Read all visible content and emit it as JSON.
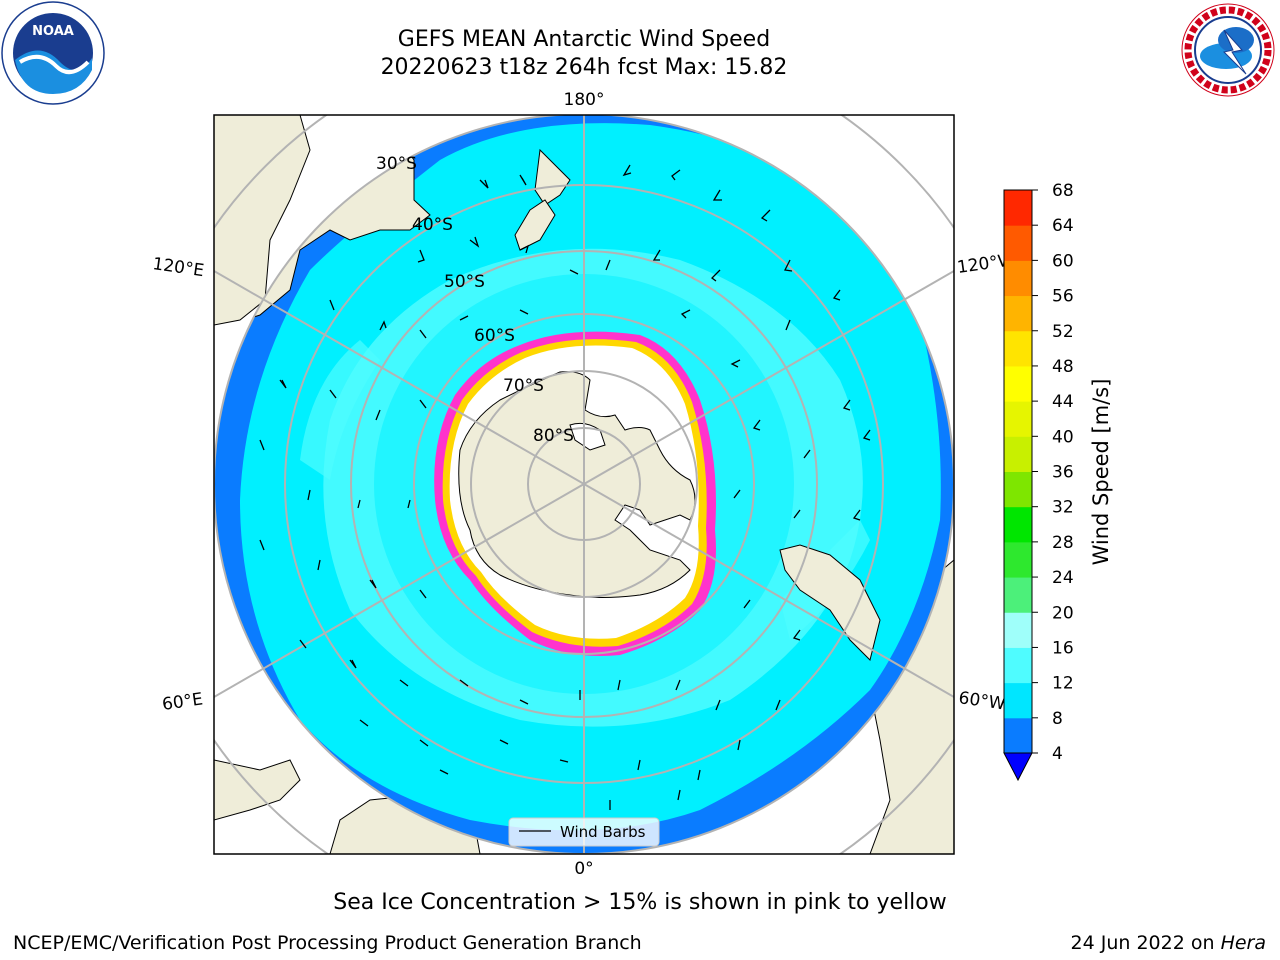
{
  "header": {
    "title": "GEFS MEAN Antarctic Wind Speed",
    "subtitle": "20220623 t18z 264h fcst   Max: 15.82"
  },
  "logos": {
    "left": {
      "text": "NOAA",
      "ring_text": "NATIONAL OCEANIC AND ATMOSPHERIC ADMINISTRATION · U.S. DEPARTMENT OF COMMERCE"
    },
    "right": {
      "ring_text": "NATIONAL WEATHER SERVICE"
    }
  },
  "map": {
    "projection": "south-polar-stereographic",
    "lat_labels": [
      "30°S",
      "40°S",
      "50°S",
      "60°S",
      "70°S",
      "80°S"
    ],
    "lon_labels": {
      "top": "180°",
      "bottom": "0°",
      "left_upper": "120°E",
      "left_lower": "60°E",
      "right_upper": "120°W",
      "right_lower": "60°W"
    },
    "legend": {
      "label": "Wind Barbs"
    },
    "colors": {
      "land": "#efedd9",
      "ocean_low": "#0a7cff",
      "ocean_mid": "#00f0ff",
      "ocean_high": "#4ffcff",
      "sea_ice_edge": "#ff33cc",
      "sea_ice_inner": "#ffd700"
    }
  },
  "colorbar": {
    "label": "Wind Speed [m/s]",
    "ticks": [
      "4",
      "8",
      "12",
      "16",
      "20",
      "24",
      "28",
      "32",
      "36",
      "40",
      "44",
      "48",
      "52",
      "56",
      "60",
      "64",
      "68"
    ],
    "colors": [
      "#0a7cff",
      "#00e6ff",
      "#4ffcff",
      "#9ffffa",
      "#4cf07a",
      "#2ee82e",
      "#00e600",
      "#7ee600",
      "#c8f000",
      "#e6f500",
      "#ffff00",
      "#ffe400",
      "#ffb400",
      "#ff8c00",
      "#ff5a00",
      "#ff2800",
      "#ff0000"
    ],
    "extend_color": "#0000ff"
  },
  "footer": {
    "note": "Sea Ice Concentration > 15% is shown in pink to yellow",
    "left": "NCEP/EMC/Verification Post Processing Product Generation Branch",
    "date": "24 Jun 2022 on ",
    "system": "Hera"
  }
}
